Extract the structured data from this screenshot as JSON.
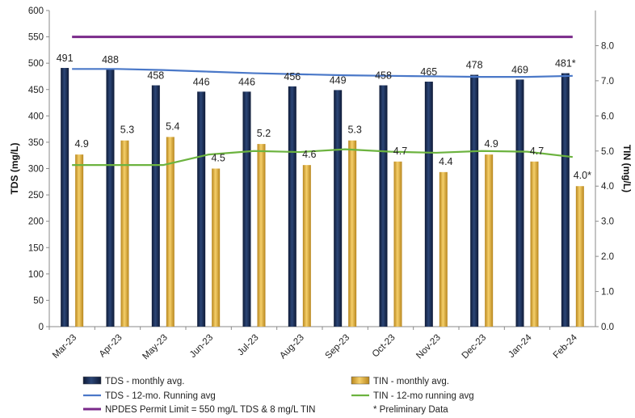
{
  "chart_data": {
    "type": "bar",
    "categories": [
      "Mar-23",
      "Apr-23",
      "May-23",
      "Jun-23",
      "Jul-23",
      "Aug-23",
      "Sep-23",
      "Oct-23",
      "Nov-23",
      "Dec-23",
      "Jan-24",
      "Feb-24"
    ],
    "ylabel": "TDS (mg/L)",
    "y2label": "TIN (mg/L)",
    "ylim": [
      0,
      600
    ],
    "y2lim": [
      0,
      9
    ],
    "yticks": [
      "0",
      "50",
      "100",
      "150",
      "200",
      "250",
      "300",
      "350",
      "400",
      "450",
      "500",
      "550",
      "600"
    ],
    "y2ticks": [
      "0.0",
      "1.0",
      "2.0",
      "3.0",
      "4.0",
      "5.0",
      "6.0",
      "7.0",
      "8.0"
    ],
    "grid": false,
    "legend_position": "bottom",
    "series": [
      {
        "name": "TDS - monthly avg.",
        "kind": "bar",
        "axis": "left",
        "color": "#17294f",
        "values": [
          491,
          488,
          458,
          446,
          446,
          456,
          449,
          458,
          465,
          478,
          469,
          481
        ],
        "labels": [
          "491",
          "488",
          "458",
          "446",
          "446",
          "456",
          "449",
          "458",
          "465",
          "478",
          "469",
          "481*"
        ]
      },
      {
        "name": "TIN - monthly avg.",
        "kind": "bar",
        "axis": "right",
        "color": "#e3b13b",
        "values": [
          4.9,
          5.3,
          5.4,
          4.5,
          5.2,
          4.6,
          5.3,
          4.7,
          4.4,
          4.9,
          4.7,
          4.0
        ],
        "labels": [
          "4.9",
          "5.3",
          "5.4",
          "4.5",
          "5.2",
          "4.6",
          "5.3",
          "4.7",
          "4.4",
          "4.9",
          "4.7",
          "4.0*"
        ]
      },
      {
        "name": "TDS - 12-mo. Running avg",
        "kind": "line",
        "axis": "left",
        "color": "#4a78c8",
        "values": [
          489,
          489,
          487,
          484,
          481,
          479,
          477,
          476,
          475,
          474,
          474,
          476
        ]
      },
      {
        "name": "TIN - 12-mo running avg",
        "kind": "line",
        "axis": "right",
        "color": "#6cb33f",
        "values": [
          4.6,
          4.6,
          4.6,
          4.9,
          5.0,
          4.97,
          5.05,
          4.98,
          4.95,
          5.0,
          4.98,
          4.83
        ]
      },
      {
        "name": "NPDES Permit Limit = 550 mg/L TDS & 8 mg/L TIN",
        "kind": "line",
        "axis": "left",
        "color": "#7a2a8a",
        "values": [
          550,
          550,
          550,
          550,
          550,
          550,
          550,
          550,
          550,
          550,
          550,
          550
        ]
      }
    ],
    "notes": [
      "* Preliminary Data"
    ]
  }
}
